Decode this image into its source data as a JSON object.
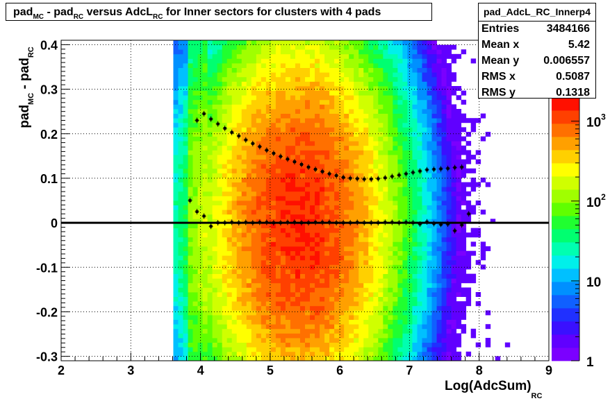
{
  "title": {
    "parts": [
      {
        "t": "pad",
        "sub": "MC"
      },
      {
        "t": " - pad",
        "sub": "RC"
      },
      {
        "t": " versus AdcL",
        "sub": "RC"
      },
      {
        "t": " for Inner sectors for clusters with 4 pads",
        "sub": ""
      }
    ]
  },
  "stats": {
    "name": "pad_AdcL_RC_Innerp4",
    "rows": [
      {
        "label": "Entries",
        "value": "3484166"
      },
      {
        "label": "Mean x",
        "value": "5.42"
      },
      {
        "label": "Mean y",
        "value": "0.006557"
      },
      {
        "label": "RMS x",
        "value": "0.5087"
      },
      {
        "label": "RMS y",
        "value": "0.1318"
      }
    ]
  },
  "axes": {
    "xlabel_main": "Log(AdcSum)",
    "xlabel_sub": "RC",
    "ylabel_main": "pad",
    "ylabel_sub1": "MC",
    "ylabel_mid": " - pad",
    "ylabel_sub2": "RC"
  },
  "chart_data": {
    "type": "heatmap",
    "title": "pad_MC - pad_RC versus AdcL_RC for Inner sectors for clusters with 4 pads",
    "xlabel": "Log(AdcSum)_RC",
    "ylabel": "pad_MC - pad_RC",
    "xlim": [
      2,
      9
    ],
    "ylim": [
      -0.31,
      0.41
    ],
    "xticks": [
      2,
      3,
      4,
      5,
      6,
      7,
      8,
      9
    ],
    "yticks": [
      -0.3,
      -0.2,
      -0.1,
      0,
      0.1,
      0.2,
      0.3,
      0.4
    ],
    "ytick_labels": [
      "-0.3",
      "-0.2",
      "-0.1",
      "0",
      "0.1",
      "0.2",
      "0.3",
      "0.4"
    ],
    "grid": true,
    "z_scale": "log",
    "zlim": [
      1,
      2000
    ],
    "colorbar_labels": [
      {
        "base": "1",
        "exp": "",
        "v": 1
      },
      {
        "base": "10",
        "exp": "",
        "v": 10
      },
      {
        "base": "10",
        "exp": "2",
        "v": 100
      },
      {
        "base": "10",
        "exp": "3",
        "v": 1000
      }
    ],
    "mean_profile": {
      "x": [
        3.95,
        4.05,
        4.15,
        4.25,
        4.35,
        4.45,
        4.55,
        4.65,
        4.75,
        4.85,
        4.95,
        5.05,
        5.15,
        5.25,
        5.35,
        5.45,
        5.55,
        5.65,
        5.75,
        5.85,
        5.95,
        6.05,
        6.15,
        6.25,
        6.35,
        6.45,
        6.55,
        6.65,
        6.75,
        6.85,
        6.95,
        7.05,
        7.15,
        7.25,
        7.35,
        7.45,
        7.55,
        7.65,
        7.75
      ],
      "y": [
        0.23,
        0.245,
        0.233,
        0.222,
        0.212,
        0.203,
        0.195,
        0.186,
        0.178,
        0.171,
        0.163,
        0.156,
        0.149,
        0.143,
        0.137,
        0.131,
        0.125,
        0.12,
        0.115,
        0.11,
        0.106,
        0.102,
        0.1,
        0.099,
        0.098,
        0.098,
        0.099,
        0.101,
        0.104,
        0.107,
        0.11,
        0.113,
        0.116,
        0.119,
        0.12,
        0.121,
        0.122,
        0.124,
        0.125
      ]
    },
    "zero_profile": {
      "x": [
        3.85,
        3.95,
        4.05,
        4.15,
        4.25,
        4.35,
        4.45,
        4.55,
        4.65,
        4.75,
        4.85,
        4.95,
        5.05,
        5.15,
        5.25,
        5.35,
        5.45,
        5.55,
        5.65,
        5.75,
        5.85,
        5.95,
        6.05,
        6.15,
        6.25,
        6.35,
        6.45,
        6.55,
        6.65,
        6.75,
        6.85,
        6.95,
        7.05,
        7.15,
        7.25,
        7.35,
        7.45,
        7.55,
        7.65,
        7.75,
        7.85
      ],
      "y": [
        0.05,
        0.025,
        0.015,
        -0.008,
        0.0,
        0.0,
        0.001,
        0.0,
        0.001,
        0.0,
        0.001,
        0.001,
        0.0,
        0.0,
        0.001,
        0.001,
        0.0,
        0.0,
        0.001,
        0.001,
        0.001,
        0.0,
        0.0,
        0.0,
        0.001,
        0.0,
        0.0,
        0.0,
        0.001,
        0.001,
        0.0,
        0.001,
        0.0,
        -0.003,
        0.002,
        -0.002,
        -0.004,
        -0.003,
        -0.018,
        -0.005,
        0.02
      ]
    }
  }
}
